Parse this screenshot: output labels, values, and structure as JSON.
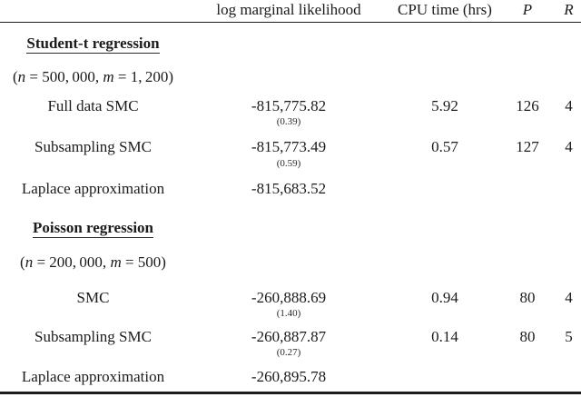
{
  "table": {
    "header": {
      "label_col": "",
      "lml": "log marginal likelihood",
      "cpu": "CPU time (hrs)",
      "p": "P",
      "r": "R"
    },
    "sections": [
      {
        "title": "Student-t regression",
        "subtitle_parts": [
          "(",
          "n",
          " = 500, 000, ",
          "m",
          " = 1, 200)"
        ],
        "rows": [
          {
            "label": "Full data SMC",
            "lml": "-815,775.82",
            "se": "(0.39)",
            "cpu": "5.92",
            "p": "126",
            "r": "4"
          },
          {
            "label": "Subsampling SMC",
            "lml": "-815,773.49",
            "se": "(0.59)",
            "cpu": "0.57",
            "p": "127",
            "r": "4"
          },
          {
            "label": "Laplace approximation",
            "lml": "-815,683.52",
            "se": "",
            "cpu": "",
            "p": "",
            "r": ""
          }
        ]
      },
      {
        "title": "Poisson regression",
        "subtitle_parts": [
          "(",
          "n",
          " = 200, 000, ",
          "m",
          " = 500)"
        ],
        "rows": [
          {
            "label": "SMC",
            "lml": "-260,888.69",
            "se": "(1.40)",
            "cpu": "0.94",
            "p": "80",
            "r": "4"
          },
          {
            "label": "Subsampling SMC",
            "lml": "-260,887.87",
            "se": "(0.27)",
            "cpu": "0.14",
            "p": "80",
            "r": "5"
          },
          {
            "label": "Laplace approximation",
            "lml": "-260,895.78",
            "se": "",
            "cpu": "",
            "p": "",
            "r": ""
          }
        ]
      }
    ]
  }
}
